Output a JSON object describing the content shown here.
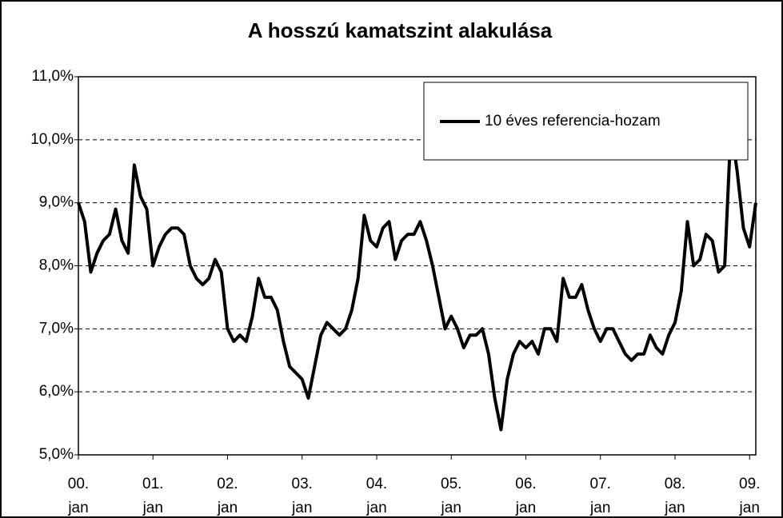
{
  "chart_data": {
    "type": "line",
    "title": "A hosszú kamatszint alakulása",
    "x": [
      "2000-01",
      "2000-02",
      "2000-03",
      "2000-04",
      "2000-05",
      "2000-06",
      "2000-07",
      "2000-08",
      "2000-09",
      "2000-10",
      "2000-11",
      "2000-12",
      "2001-01",
      "2001-02",
      "2001-03",
      "2001-04",
      "2001-05",
      "2001-06",
      "2001-07",
      "2001-08",
      "2001-09",
      "2001-10",
      "2001-11",
      "2001-12",
      "2002-01",
      "2002-02",
      "2002-03",
      "2002-04",
      "2002-05",
      "2002-06",
      "2002-07",
      "2002-08",
      "2002-09",
      "2002-10",
      "2002-11",
      "2002-12",
      "2003-01",
      "2003-02",
      "2003-03",
      "2003-04",
      "2003-05",
      "2003-06",
      "2003-07",
      "2003-08",
      "2003-09",
      "2003-10",
      "2003-11",
      "2003-12",
      "2004-01",
      "2004-02",
      "2004-03",
      "2004-04",
      "2004-05",
      "2004-06",
      "2004-07",
      "2004-08",
      "2004-09",
      "2004-10",
      "2004-11",
      "2004-12",
      "2005-01",
      "2005-02",
      "2005-03",
      "2005-04",
      "2005-05",
      "2005-06",
      "2005-07",
      "2005-08",
      "2005-09",
      "2005-10",
      "2005-11",
      "2005-12",
      "2006-01",
      "2006-02",
      "2006-03",
      "2006-04",
      "2006-05",
      "2006-06",
      "2006-07",
      "2006-08",
      "2006-09",
      "2006-10",
      "2006-11",
      "2006-12",
      "2007-01",
      "2007-02",
      "2007-03",
      "2007-04",
      "2007-05",
      "2007-06",
      "2007-07",
      "2007-08",
      "2007-09",
      "2007-10",
      "2007-11",
      "2007-12",
      "2008-01",
      "2008-02",
      "2008-03",
      "2008-04",
      "2008-05",
      "2008-06",
      "2008-07",
      "2008-08",
      "2008-09",
      "2008-10",
      "2008-11",
      "2008-12",
      "2009-01",
      "2009-02"
    ],
    "series": [
      {
        "name": "10 éves referencia-hozam",
        "color": "#000000",
        "values": [
          9.0,
          8.7,
          7.9,
          8.2,
          8.4,
          8.5,
          8.9,
          8.4,
          8.2,
          9.6,
          9.1,
          8.9,
          8.0,
          8.3,
          8.5,
          8.6,
          8.6,
          8.5,
          8.0,
          7.8,
          7.7,
          7.8,
          8.1,
          7.9,
          7.0,
          6.8,
          6.9,
          6.8,
          7.2,
          7.8,
          7.5,
          7.5,
          7.3,
          6.8,
          6.4,
          6.3,
          6.2,
          5.9,
          6.4,
          6.9,
          7.1,
          7.0,
          6.9,
          7.0,
          7.3,
          7.8,
          8.8,
          8.4,
          8.3,
          8.6,
          8.7,
          8.1,
          8.4,
          8.5,
          8.5,
          8.7,
          8.4,
          8.0,
          7.5,
          7.0,
          7.2,
          7.0,
          6.7,
          6.9,
          6.9,
          7.0,
          6.6,
          5.9,
          5.4,
          6.2,
          6.6,
          6.8,
          6.7,
          6.8,
          6.6,
          7.0,
          7.0,
          6.8,
          7.8,
          7.5,
          7.5,
          7.7,
          7.3,
          7.0,
          6.8,
          7.0,
          7.0,
          6.8,
          6.6,
          6.5,
          6.6,
          6.6,
          6.9,
          6.7,
          6.6,
          6.9,
          7.1,
          7.6,
          8.7,
          8.0,
          8.1,
          8.5,
          8.4,
          7.9,
          8.0,
          10.2,
          9.5,
          8.6,
          8.3,
          9.0
        ]
      }
    ],
    "xlim": [
      "2000-01",
      "2009-02"
    ],
    "xticks": [
      {
        "value": "2000-01",
        "label": [
          "00.",
          "jan"
        ]
      },
      {
        "value": "2001-01",
        "label": [
          "01.",
          "jan"
        ]
      },
      {
        "value": "2002-01",
        "label": [
          "02.",
          "jan"
        ]
      },
      {
        "value": "2003-01",
        "label": [
          "03.",
          "jan"
        ]
      },
      {
        "value": "2004-01",
        "label": [
          "04.",
          "jan"
        ]
      },
      {
        "value": "2005-01",
        "label": [
          "05.",
          "jan"
        ]
      },
      {
        "value": "2006-01",
        "label": [
          "06.",
          "jan"
        ]
      },
      {
        "value": "2007-01",
        "label": [
          "07.",
          "jan"
        ]
      },
      {
        "value": "2008-01",
        "label": [
          "08.",
          "jan"
        ]
      },
      {
        "value": "2009-01",
        "label": [
          "09.",
          "jan"
        ]
      }
    ],
    "ylim": [
      5,
      11
    ],
    "yticks": [
      {
        "value": 5,
        "label": "5,0%"
      },
      {
        "value": 6,
        "label": "6,0%"
      },
      {
        "value": 7,
        "label": "7,0%"
      },
      {
        "value": 8,
        "label": "8,0%"
      },
      {
        "value": 9,
        "label": "9,0%"
      },
      {
        "value": 10,
        "label": "10,0%"
      },
      {
        "value": 11,
        "label": "11,0%"
      }
    ],
    "grid": true,
    "legend": "upper right"
  }
}
